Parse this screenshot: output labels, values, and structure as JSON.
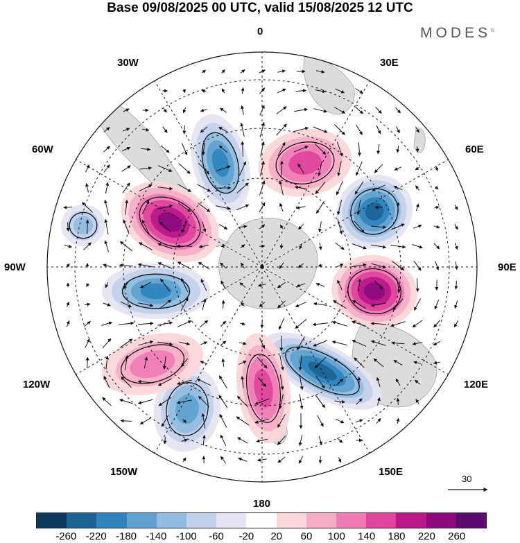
{
  "title": "Base 09/08/2025 00 UTC, valid 15/08/2025 12 UTC",
  "brand": "MODES",
  "brand_mark": "©",
  "lon_labels": [
    "0",
    "30E",
    "60E",
    "90E",
    "120E",
    "150E",
    "180",
    "150W",
    "120W",
    "90W",
    "60W",
    "30W"
  ],
  "reference_vector": "30",
  "colorbar": {
    "ticks": [
      "-260",
      "-220",
      "-180",
      "-140",
      "-100",
      "-60",
      "-20",
      "20",
      "60",
      "100",
      "140",
      "180",
      "220",
      "260"
    ],
    "colors": [
      "#0d3a5c",
      "#1b6394",
      "#2e84bd",
      "#5fa1cf",
      "#92bce0",
      "#c1d1ea",
      "#e4e4f2",
      "#ffffff",
      "#fbd6d8",
      "#f6adc6",
      "#ef7cb6",
      "#e0459d",
      "#b9188a",
      "#8c0a7e",
      "#5c0a6f"
    ]
  },
  "anomaly_centers": [
    {
      "label": "positive anomaly over south Atlantic",
      "value": 160
    },
    {
      "label": "negative anomaly south of Africa",
      "value": -200
    },
    {
      "label": "positive anomaly southwest of Australia",
      "value": 240
    },
    {
      "label": "negative anomaly over Indian Ocean",
      "value": -240
    },
    {
      "label": "negative anomaly south of Australia",
      "value": -260
    },
    {
      "label": "positive anomaly near New Zealand",
      "value": 180
    },
    {
      "label": "negative anomaly over south Pacific",
      "value": -160
    },
    {
      "label": "positive anomaly over southeast Pacific",
      "value": 140
    },
    {
      "label": "negative anomaly west of Antarctic Peninsula",
      "value": -220
    },
    {
      "label": "positive anomaly near Drake Passage",
      "value": 260
    },
    {
      "label": "negative anomaly far southeast Pacific",
      "value": -140
    }
  ]
}
